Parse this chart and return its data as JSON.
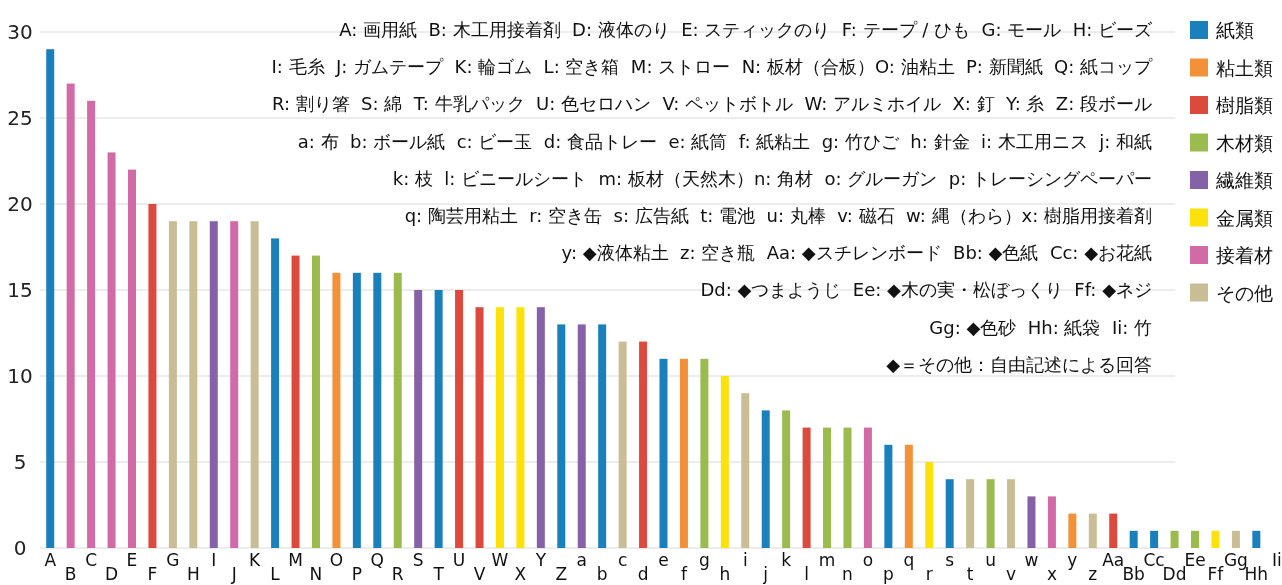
{
  "chart_data": {
    "type": "bar",
    "stacked": true,
    "grid": "y",
    "legend": "right",
    "ylim": [
      0,
      30
    ],
    "yticks": [
      0,
      5,
      10,
      15,
      20,
      25,
      30
    ],
    "categories": [
      "A",
      "B",
      "C",
      "D",
      "E",
      "F",
      "G",
      "H",
      "I",
      "J",
      "K",
      "L",
      "M",
      "N",
      "O",
      "P",
      "Q",
      "R",
      "S",
      "T",
      "U",
      "V",
      "W",
      "X",
      "Y",
      "Z",
      "a",
      "b",
      "c",
      "d",
      "e",
      "f",
      "g",
      "h",
      "i",
      "j",
      "k",
      "l",
      "m",
      "n",
      "o",
      "p",
      "q",
      "r",
      "s",
      "t",
      "u",
      "v",
      "w",
      "x",
      "y",
      "z",
      "Aa",
      "Bb",
      "Cc",
      "Dd",
      "Ee",
      "Ff",
      "Gg",
      "Hh",
      "Ii"
    ],
    "series": [
      {
        "name": "紙類",
        "color": "#1a80bb",
        "values": [
          29,
          null,
          null,
          null,
          null,
          null,
          null,
          null,
          null,
          null,
          null,
          18,
          null,
          null,
          null,
          16,
          16,
          null,
          null,
          15,
          null,
          null,
          null,
          null,
          null,
          13,
          null,
          13,
          null,
          null,
          11,
          null,
          null,
          null,
          null,
          8,
          null,
          null,
          null,
          null,
          null,
          6,
          null,
          null,
          4,
          null,
          null,
          null,
          null,
          null,
          null,
          null,
          null,
          1,
          1,
          null,
          null,
          null,
          null,
          1,
          null
        ]
      },
      {
        "name": "粘土類",
        "color": "#f29137",
        "values": [
          null,
          null,
          null,
          null,
          null,
          null,
          null,
          null,
          null,
          null,
          null,
          null,
          null,
          null,
          16,
          null,
          null,
          null,
          null,
          null,
          null,
          null,
          null,
          null,
          null,
          null,
          null,
          null,
          null,
          null,
          null,
          11,
          null,
          null,
          null,
          null,
          null,
          null,
          null,
          null,
          null,
          null,
          6,
          null,
          null,
          null,
          null,
          null,
          null,
          null,
          2,
          null,
          null,
          null,
          null,
          null,
          null,
          null,
          null,
          null,
          null
        ]
      },
      {
        "name": "樹脂類",
        "color": "#dc4a3e",
        "values": [
          null,
          null,
          null,
          null,
          null,
          20,
          null,
          null,
          null,
          null,
          null,
          null,
          17,
          null,
          null,
          null,
          null,
          null,
          null,
          null,
          15,
          14,
          null,
          null,
          null,
          null,
          null,
          null,
          null,
          12,
          null,
          null,
          null,
          null,
          null,
          null,
          null,
          7,
          null,
          null,
          null,
          null,
          null,
          null,
          null,
          null,
          null,
          null,
          null,
          null,
          null,
          null,
          2,
          null,
          null,
          null,
          null,
          null,
          null,
          null,
          null
        ]
      },
      {
        "name": "木材類",
        "color": "#9bbb4e",
        "values": [
          null,
          null,
          null,
          null,
          null,
          null,
          null,
          null,
          null,
          null,
          null,
          null,
          null,
          17,
          null,
          null,
          null,
          16,
          null,
          null,
          null,
          null,
          null,
          null,
          null,
          null,
          null,
          null,
          null,
          null,
          null,
          null,
          11,
          null,
          null,
          null,
          8,
          null,
          7,
          7,
          null,
          null,
          null,
          null,
          null,
          null,
          4,
          null,
          null,
          null,
          null,
          null,
          null,
          null,
          null,
          1,
          1,
          null,
          null,
          null,
          null
        ]
      },
      {
        "name": "繊維類",
        "color": "#8561a8",
        "values": [
          null,
          null,
          null,
          null,
          null,
          null,
          null,
          null,
          19,
          null,
          null,
          null,
          null,
          null,
          null,
          null,
          null,
          null,
          15,
          null,
          null,
          null,
          null,
          null,
          14,
          null,
          13,
          null,
          null,
          null,
          null,
          null,
          null,
          null,
          null,
          null,
          null,
          null,
          null,
          null,
          null,
          null,
          null,
          null,
          null,
          null,
          null,
          null,
          3,
          null,
          null,
          null,
          null,
          null,
          null,
          null,
          null,
          null,
          null,
          null,
          null
        ]
      },
      {
        "name": "金属類",
        "color": "#fde10a",
        "values": [
          null,
          null,
          null,
          null,
          null,
          null,
          null,
          null,
          null,
          null,
          null,
          null,
          null,
          null,
          null,
          null,
          null,
          null,
          null,
          null,
          null,
          null,
          14,
          14,
          null,
          null,
          null,
          null,
          null,
          null,
          null,
          null,
          null,
          10,
          null,
          null,
          null,
          null,
          null,
          null,
          null,
          null,
          null,
          5,
          null,
          null,
          null,
          null,
          null,
          null,
          null,
          null,
          null,
          null,
          null,
          null,
          null,
          1,
          null,
          null,
          null
        ]
      },
      {
        "name": "接着材",
        "color": "#d36aa8",
        "values": [
          null,
          27,
          26,
          23,
          22,
          null,
          null,
          null,
          null,
          19,
          null,
          null,
          null,
          null,
          null,
          null,
          null,
          null,
          null,
          null,
          null,
          null,
          null,
          null,
          null,
          null,
          null,
          null,
          null,
          null,
          null,
          null,
          null,
          null,
          null,
          null,
          null,
          null,
          null,
          null,
          7,
          null,
          null,
          null,
          null,
          null,
          null,
          null,
          null,
          3,
          null,
          null,
          null,
          null,
          null,
          null,
          null,
          null,
          null,
          null,
          null
        ]
      },
      {
        "name": "その他",
        "color": "#c8bd94",
        "values": [
          null,
          null,
          null,
          null,
          null,
          null,
          19,
          19,
          null,
          null,
          19,
          null,
          null,
          null,
          null,
          null,
          null,
          null,
          null,
          null,
          null,
          null,
          null,
          null,
          null,
          null,
          null,
          null,
          12,
          null,
          null,
          null,
          null,
          null,
          9,
          null,
          null,
          null,
          null,
          null,
          null,
          null,
          null,
          null,
          null,
          4,
          null,
          4,
          null,
          null,
          null,
          2,
          null,
          null,
          null,
          null,
          null,
          null,
          1,
          null,
          null
        ]
      }
    ],
    "annotations": [
      "A: 画用紙  B: 木工用接着剤  D: 液体のり  E: スティックのり  F: テープ / ひも  G: モール  H: ビーズ",
      "I: 毛糸  J: ガムテープ  K: 輪ゴム  L: 空き箱  M: ストロー  N: 板材（合板）O: 油粘土  P: 新聞紙  Q: 紙コップ",
      "R: 割り箸  S: 綿  T: 牛乳パック  U: 色セロハン  V: ペットボトル  W: アルミホイル  X: 釘  Y: 糸  Z: 段ボール",
      "a: 布  b: ボール紙  c: ビー玉  d: 食品トレー  e: 紙筒  f: 紙粘土  g: 竹ひご  h: 針金  i: 木工用ニス  j: 和紙",
      "k: 枝  l: ビニールシート  m: 板材（天然木）n: 角材  o: グルーガン  p: トレーシングペーパー",
      "q: 陶芸用粘土  r: 空き缶  s: 広告紙  t: 電池  u: 丸棒  v: 磁石  w: 縄（わら）x: 樹脂用接着剤",
      "y: ◆液体粘土  z: 空き瓶  Aa: ◆スチレンボード  Bb: ◆色紙  Cc: ◆お花紙",
      "Dd: ◆つまようじ  Ee: ◆木の実・松ぼっくり  Ff: ◆ネジ",
      "Gg: ◆色砂  Hh: 紙袋  Ii: 竹",
      "◆＝その他：自由記述による回答"
    ]
  }
}
